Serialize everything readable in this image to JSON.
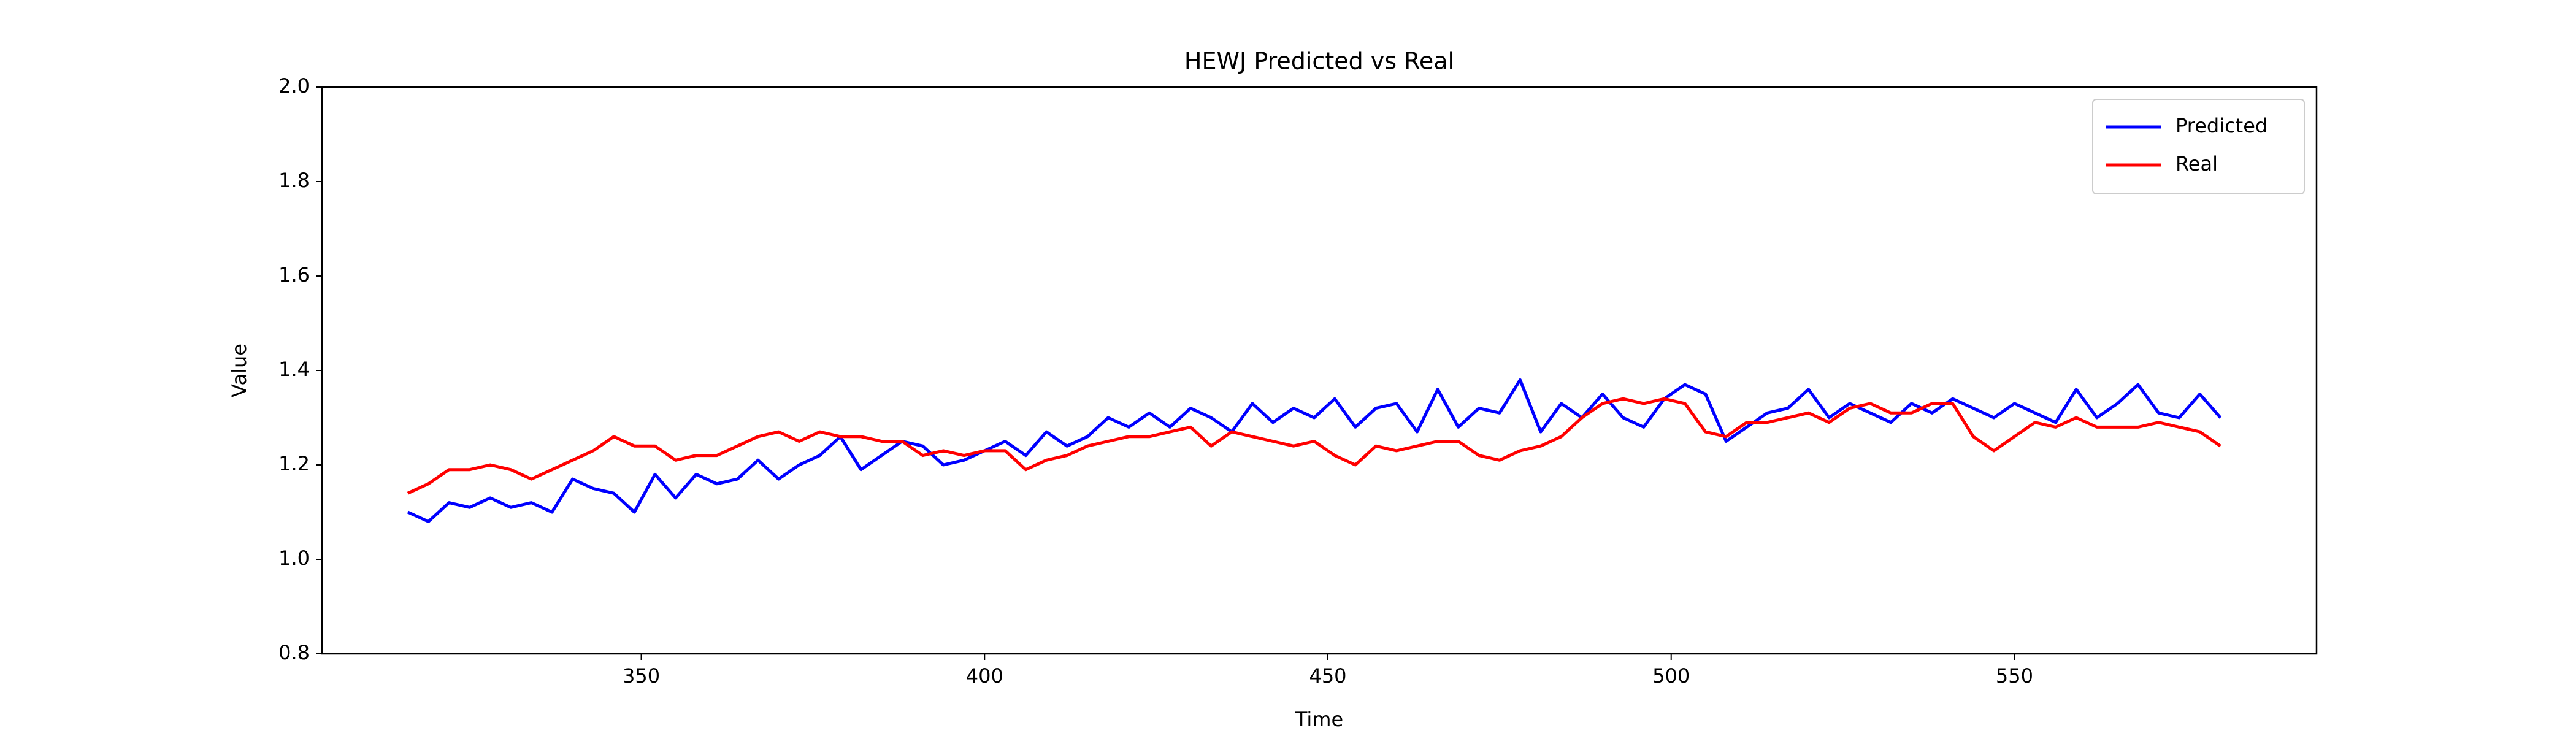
{
  "chart_data": {
    "type": "line",
    "title": "HEWJ Predicted vs Real",
    "xlabel": "Time",
    "ylabel": "Value",
    "x": [
      316,
      319,
      322,
      325,
      328,
      331,
      334,
      337,
      340,
      343,
      346,
      349,
      352,
      355,
      358,
      361,
      364,
      367,
      370,
      373,
      376,
      379,
      382,
      385,
      388,
      391,
      394,
      397,
      400,
      403,
      406,
      409,
      412,
      415,
      418,
      421,
      424,
      427,
      430,
      433,
      436,
      439,
      442,
      445,
      448,
      451,
      454,
      457,
      460,
      463,
      466,
      469,
      472,
      475,
      478,
      481,
      484,
      487,
      490,
      493,
      496,
      499,
      502,
      505,
      508,
      511,
      514,
      517,
      520,
      523,
      526,
      529,
      532,
      535,
      538,
      541,
      544,
      547,
      550,
      553,
      556,
      559,
      562,
      565,
      568,
      571,
      574,
      577,
      580
    ],
    "series": [
      {
        "name": "Predicted",
        "color": "#0000ff",
        "values": [
          1.1,
          1.08,
          1.12,
          1.11,
          1.13,
          1.11,
          1.12,
          1.1,
          1.17,
          1.15,
          1.14,
          1.1,
          1.18,
          1.13,
          1.18,
          1.16,
          1.17,
          1.21,
          1.17,
          1.2,
          1.22,
          1.26,
          1.19,
          1.22,
          1.25,
          1.24,
          1.2,
          1.21,
          1.23,
          1.25,
          1.22,
          1.27,
          1.24,
          1.26,
          1.3,
          1.28,
          1.31,
          1.28,
          1.32,
          1.3,
          1.27,
          1.33,
          1.29,
          1.32,
          1.3,
          1.34,
          1.28,
          1.32,
          1.33,
          1.27,
          1.36,
          1.28,
          1.32,
          1.31,
          1.38,
          1.27,
          1.33,
          1.3,
          1.35,
          1.3,
          1.28,
          1.34,
          1.37,
          1.35,
          1.25,
          1.28,
          1.31,
          1.32,
          1.36,
          1.3,
          1.33,
          1.31,
          1.29,
          1.33,
          1.31,
          1.34,
          1.32,
          1.3,
          1.33,
          1.31,
          1.29,
          1.36,
          1.3,
          1.33,
          1.37,
          1.31,
          1.3,
          1.35,
          1.3
        ]
      },
      {
        "name": "Real",
        "color": "#ff0000",
        "values": [
          1.14,
          1.16,
          1.19,
          1.19,
          1.2,
          1.19,
          1.17,
          1.19,
          1.21,
          1.23,
          1.26,
          1.24,
          1.24,
          1.21,
          1.22,
          1.22,
          1.24,
          1.26,
          1.27,
          1.25,
          1.27,
          1.26,
          1.26,
          1.25,
          1.25,
          1.22,
          1.23,
          1.22,
          1.23,
          1.23,
          1.19,
          1.21,
          1.22,
          1.24,
          1.25,
          1.26,
          1.26,
          1.27,
          1.28,
          1.24,
          1.27,
          1.26,
          1.25,
          1.24,
          1.25,
          1.22,
          1.2,
          1.24,
          1.23,
          1.24,
          1.25,
          1.25,
          1.22,
          1.21,
          1.23,
          1.24,
          1.26,
          1.3,
          1.33,
          1.34,
          1.33,
          1.34,
          1.33,
          1.27,
          1.26,
          1.29,
          1.29,
          1.3,
          1.31,
          1.29,
          1.32,
          1.33,
          1.31,
          1.31,
          1.33,
          1.33,
          1.26,
          1.23,
          1.26,
          1.29,
          1.28,
          1.3,
          1.28,
          1.28,
          1.28,
          1.29,
          1.28,
          1.27,
          1.24
        ]
      }
    ],
    "xlim": [
      303.5,
      594
    ],
    "xticks": [
      350,
      400,
      450,
      500,
      550
    ],
    "ylim": [
      0.8,
      2.0
    ],
    "yticks": [
      0.8,
      {
        "value": 1.0,
        "label": "1.0"
      },
      1.2,
      1.4,
      1.6,
      1.8,
      {
        "value": 2.0,
        "label": "2.0"
      }
    ],
    "legend": "upper right"
  }
}
